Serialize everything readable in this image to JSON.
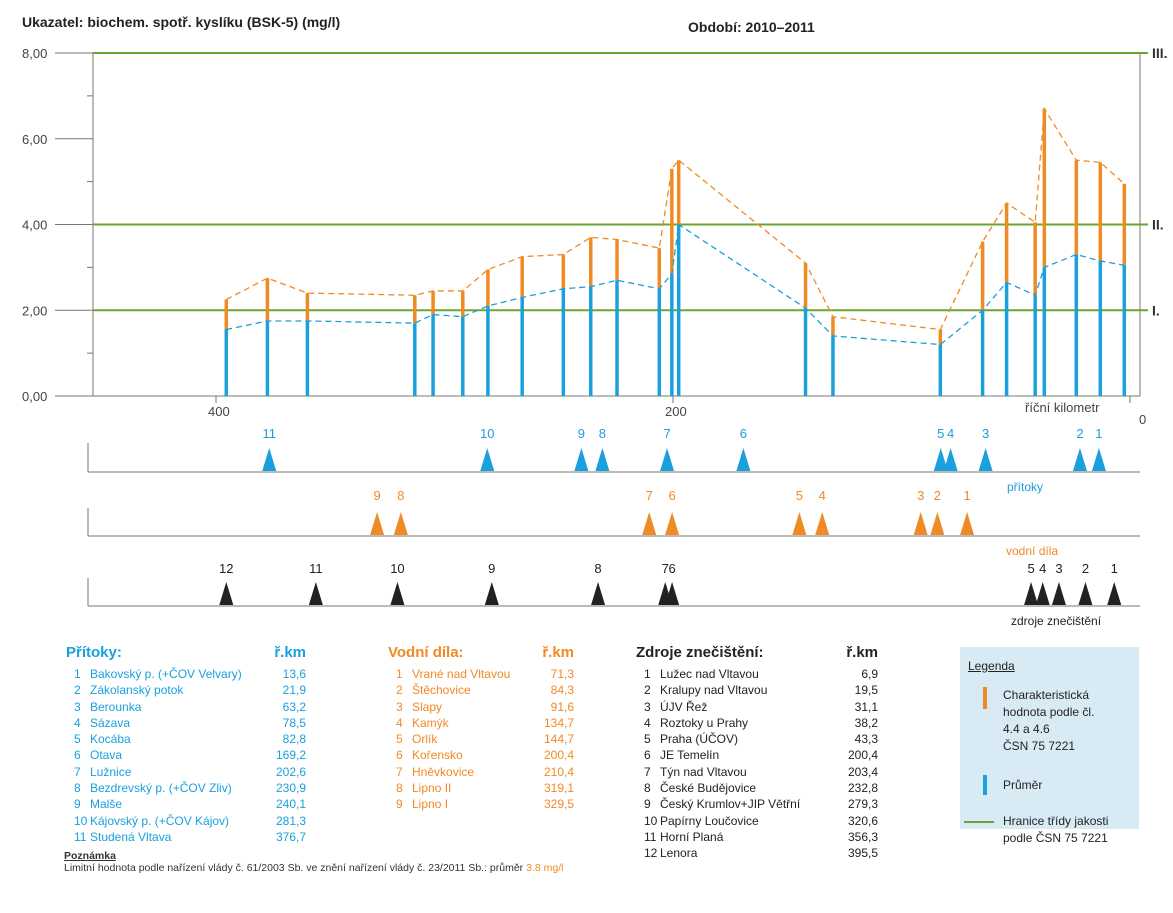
{
  "header": {
    "indicator": "Ukazatel:  biochem. spotř. kyslíku (BSK-5) (mg/l)",
    "period": "Období:  2010–2011"
  },
  "chart_data": {
    "type": "line",
    "ylim": [
      0,
      8
    ],
    "y_ticks": [
      "0,00",
      "2,00",
      "4,00",
      "6,00",
      "8,00"
    ],
    "x_reversed": true,
    "xlim": [
      430,
      0
    ],
    "x_ticks": [
      "400",
      "200",
      "0"
    ],
    "xlabel": "říční kilometr",
    "quality_classes": [
      {
        "label": "I.",
        "value": 2
      },
      {
        "label": "II.",
        "value": 4
      },
      {
        "label": "III.",
        "value": 8
      }
    ],
    "colors": {
      "average": "#1aa0dc",
      "characteristic": "#f08a24",
      "class_line": "#6aa531"
    },
    "stations": [
      {
        "km": 395.5,
        "avg": 1.55,
        "char": 2.25
      },
      {
        "km": 377.5,
        "avg": 1.75,
        "char": 2.75
      },
      {
        "km": 360.0,
        "avg": 1.75,
        "char": 2.4
      },
      {
        "km": 313.0,
        "avg": 1.7,
        "char": 2.35
      },
      {
        "km": 305.0,
        "avg": 1.9,
        "char": 2.45
      },
      {
        "km": 292.0,
        "avg": 1.85,
        "char": 2.45
      },
      {
        "km": 281.0,
        "avg": 2.1,
        "char": 2.95
      },
      {
        "km": 266.0,
        "avg": 2.3,
        "char": 3.25
      },
      {
        "km": 248.0,
        "avg": 2.5,
        "char": 3.3
      },
      {
        "km": 236.0,
        "avg": 2.55,
        "char": 3.7
      },
      {
        "km": 224.5,
        "avg": 2.7,
        "char": 3.65
      },
      {
        "km": 206.0,
        "avg": 2.5,
        "char": 3.45
      },
      {
        "km": 200.5,
        "avg": 2.85,
        "char": 5.3
      },
      {
        "km": 197.5,
        "avg": 4.0,
        "char": 5.5
      },
      {
        "km": 142.0,
        "avg": 2.05,
        "char": 3.1
      },
      {
        "km": 130.0,
        "avg": 1.4,
        "char": 1.85
      },
      {
        "km": 83.0,
        "avg": 1.2,
        "char": 1.55
      },
      {
        "km": 64.5,
        "avg": 2.0,
        "char": 3.6
      },
      {
        "km": 54.0,
        "avg": 2.65,
        "char": 4.5
      },
      {
        "km": 41.5,
        "avg": 2.35,
        "char": 4.05
      },
      {
        "km": 37.5,
        "avg": 3.0,
        "char": 6.7
      },
      {
        "km": 23.5,
        "avg": 3.3,
        "char": 5.5
      },
      {
        "km": 13.0,
        "avg": 3.15,
        "char": 5.45
      },
      {
        "km": 2.5,
        "avg": 3.05,
        "char": 4.95
      }
    ],
    "marker_rows": [
      {
        "label": "přítoky",
        "color": "#1aa0dc",
        "markers": [
          {
            "n": "11",
            "km": 376.7
          },
          {
            "n": "10",
            "km": 281.3
          },
          {
            "n": "9",
            "km": 240.1
          },
          {
            "n": "8",
            "km": 230.9
          },
          {
            "n": "7",
            "km": 202.6
          },
          {
            "n": "6",
            "km": 169.2
          },
          {
            "n": "5",
            "km": 82.8
          },
          {
            "n": "4",
            "km": 78.5
          },
          {
            "n": "3",
            "km": 63.2
          },
          {
            "n": "2",
            "km": 21.9
          },
          {
            "n": "1",
            "km": 13.6
          }
        ]
      },
      {
        "label": "vodní díla",
        "color": "#f08a24",
        "markers": [
          {
            "n": "9",
            "km": 329.5
          },
          {
            "n": "8",
            "km": 319.1
          },
          {
            "n": "7",
            "km": 210.4
          },
          {
            "n": "6",
            "km": 200.4
          },
          {
            "n": "5",
            "km": 144.7
          },
          {
            "n": "4",
            "km": 134.7
          },
          {
            "n": "3",
            "km": 91.6
          },
          {
            "n": "2",
            "km": 84.3
          },
          {
            "n": "1",
            "km": 71.3
          }
        ]
      },
      {
        "label": "zdroje znečištění",
        "color": "#222222",
        "markers": [
          {
            "n": "12",
            "km": 395.5
          },
          {
            "n": "11",
            "km": 356.3
          },
          {
            "n": "10",
            "km": 320.6
          },
          {
            "n": "9",
            "km": 279.3
          },
          {
            "n": "8",
            "km": 232.8
          },
          {
            "n": "7",
            "km": 203.4
          },
          {
            "n": "6",
            "km": 200.4
          },
          {
            "n": "5",
            "km": 43.3
          },
          {
            "n": "4",
            "km": 38.2
          },
          {
            "n": "3",
            "km": 31.1
          },
          {
            "n": "2",
            "km": 19.5
          },
          {
            "n": "1",
            "km": 6.9
          }
        ]
      }
    ]
  },
  "tables": {
    "pritoky": {
      "title": "Přítoky:",
      "km_header": "ř.km",
      "rows": [
        {
          "n": "1",
          "name": "Bakovský p. (+ČOV Velvary)",
          "km": "13,6"
        },
        {
          "n": "2",
          "name": "Zákolanský potok",
          "km": "21,9"
        },
        {
          "n": "3",
          "name": "Berounka",
          "km": "63,2"
        },
        {
          "n": "4",
          "name": "Sázava",
          "km": "78,5"
        },
        {
          "n": "5",
          "name": "Kocába",
          "km": "82,8"
        },
        {
          "n": "6",
          "name": "Otava",
          "km": "169,2"
        },
        {
          "n": "7",
          "name": "Lužnice",
          "km": "202,6"
        },
        {
          "n": "8",
          "name": "Bezdrevský p. (+ČOV Zliv)",
          "km": "230,9"
        },
        {
          "n": "9",
          "name": "Malše",
          "km": "240,1"
        },
        {
          "n": "10",
          "name": "Kájovský p. (+ČOV Kájov)",
          "km": "281,3"
        },
        {
          "n": "11",
          "name": "Studená Vltava",
          "km": "376,7"
        }
      ]
    },
    "vodni_dila": {
      "title": "Vodní díla:",
      "km_header": "ř.km",
      "rows": [
        {
          "n": "1",
          "name": "Vrané nad Vltavou",
          "km": "71,3"
        },
        {
          "n": "2",
          "name": "Štěchovice",
          "km": "84,3"
        },
        {
          "n": "3",
          "name": "Slapy",
          "km": "91,6"
        },
        {
          "n": "4",
          "name": "Kamýk",
          "km": "134,7"
        },
        {
          "n": "5",
          "name": "Orlík",
          "km": "144,7"
        },
        {
          "n": "6",
          "name": "Kořensko",
          "km": "200,4"
        },
        {
          "n": "7",
          "name": "Hněvkovice",
          "km": "210,4"
        },
        {
          "n": "8",
          "name": "Lipno II",
          "km": "319,1"
        },
        {
          "n": "9",
          "name": "Lipno I",
          "km": "329,5"
        }
      ]
    },
    "zdroje": {
      "title": "Zdroje znečištění:",
      "km_header": "ř.km",
      "rows": [
        {
          "n": "1",
          "name": "Lužec nad Vltavou",
          "km": "6,9"
        },
        {
          "n": "2",
          "name": "Kralupy nad Vltavou",
          "km": "19,5"
        },
        {
          "n": "3",
          "name": "ÚJV Řež",
          "km": "31,1"
        },
        {
          "n": "4",
          "name": "Roztoky u Prahy",
          "km": "38,2"
        },
        {
          "n": "5",
          "name": "Praha (ÚČOV)",
          "km": "43,3"
        },
        {
          "n": "6",
          "name": "JE Temelín",
          "km": "200,4"
        },
        {
          "n": "7",
          "name": "Týn nad Vltavou",
          "km": "203,4"
        },
        {
          "n": "8",
          "name": "České Budějovice",
          "km": "232,8"
        },
        {
          "n": "9",
          "name": "Český Krumlov+JIP Větřní",
          "km": "279,3"
        },
        {
          "n": "10",
          "name": "Papírny Loučovice",
          "km": "320,6"
        },
        {
          "n": "11",
          "name": "Horní Planá",
          "km": "356,3"
        },
        {
          "n": "12",
          "name": "Lenora",
          "km": "395,5"
        }
      ]
    }
  },
  "legend": {
    "title": "Legenda",
    "characteristic": [
      "Charakteristická",
      "hodnota podle čl.",
      "4.4 a 4.6",
      "ČSN 75 7221"
    ],
    "average": "Průměr",
    "class_border": [
      "Hranice třídy jakosti",
      "podle ČSN 75 7221"
    ]
  },
  "note": {
    "title": "Poznámka",
    "text": "Limitní hodnota podle nařízení vlády č. 61/2003 Sb. ve znění nařízení vlády č. 23/2011 Sb.: průměr",
    "value": "3.8 mg/l"
  }
}
